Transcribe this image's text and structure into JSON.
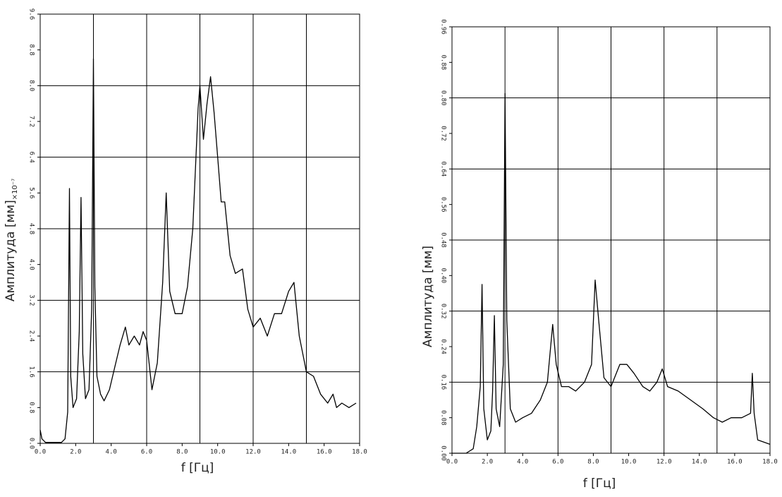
{
  "chart_data": [
    {
      "type": "line",
      "xlabel": "f [Гц]",
      "ylabel": "Амплитуда [мм]",
      "ylabel_suffix": "×10⁻⁷",
      "color": "#000000",
      "xlim": [
        0,
        18
      ],
      "ylim": [
        0,
        9.6
      ],
      "xticks": [
        {
          "value": 0,
          "label": "0.0"
        },
        {
          "value": 2,
          "label": "2.0"
        },
        {
          "value": 4,
          "label": "4.0"
        },
        {
          "value": 6,
          "label": "6.0"
        },
        {
          "value": 8,
          "label": "8.0"
        },
        {
          "value": 10,
          "label": "10.0"
        },
        {
          "value": 12,
          "label": "12.0"
        },
        {
          "value": 14,
          "label": "14.0"
        },
        {
          "value": 16,
          "label": "16.0"
        },
        {
          "value": 18,
          "label": "18.0"
        }
      ],
      "yticks": [
        {
          "value": 0,
          "label": "0.0"
        },
        0.8,
        1.6,
        2.4,
        3.2,
        {
          "value": 4,
          "label": "4.0"
        },
        4.8,
        5.6,
        6.4,
        7.2,
        {
          "value": 8,
          "label": "8.0"
        },
        8.8,
        9.6
      ],
      "x_gridlines": [
        3,
        6,
        9,
        12,
        15
      ],
      "y_gridlines": [
        1.6,
        3.2,
        4.8,
        6.4,
        8.0
      ],
      "x": [
        0,
        0.1,
        0.3,
        1.2,
        1.4,
        1.55,
        1.65,
        1.72,
        1.85,
        2.05,
        2.2,
        2.3,
        2.4,
        2.55,
        2.75,
        2.9,
        3.0,
        3.08,
        3.2,
        3.4,
        3.6,
        3.9,
        4.2,
        4.5,
        4.8,
        5.0,
        5.3,
        5.6,
        5.8,
        6.0,
        6.3,
        6.6,
        6.9,
        7.1,
        7.3,
        7.6,
        8.0,
        8.3,
        8.6,
        8.9,
        9.0,
        9.2,
        9.4,
        9.6,
        9.8,
        10.0,
        10.2,
        10.4,
        10.7,
        11.0,
        11.4,
        11.7,
        12.0,
        12.4,
        12.8,
        13.2,
        13.6,
        14.0,
        14.3,
        14.6,
        15.0,
        15.4,
        15.8,
        16.2,
        16.5,
        16.7,
        17.0,
        17.4,
        17.8
      ],
      "values": [
        0.3,
        0.1,
        0.02,
        0.02,
        0.1,
        0.7,
        5.7,
        1.5,
        0.8,
        1.0,
        2.5,
        5.5,
        2.0,
        1.0,
        1.2,
        3.0,
        8.6,
        3.5,
        1.5,
        1.1,
        0.95,
        1.2,
        1.7,
        2.2,
        2.6,
        2.2,
        2.4,
        2.2,
        2.5,
        2.3,
        1.2,
        1.8,
        3.6,
        5.6,
        3.4,
        2.9,
        2.9,
        3.5,
        4.8,
        7.5,
        8.0,
        6.8,
        7.6,
        8.2,
        7.4,
        6.4,
        5.4,
        5.4,
        4.2,
        3.8,
        3.9,
        3.0,
        2.6,
        2.8,
        2.4,
        2.9,
        2.9,
        3.4,
        3.6,
        2.4,
        1.6,
        1.5,
        1.1,
        0.9,
        1.1,
        0.8,
        0.9,
        0.8,
        0.9
      ]
    },
    {
      "type": "line",
      "xlabel": "f [Гц]",
      "ylabel": "Амплитуда [мм]",
      "color": "#000000",
      "xlim": [
        0,
        18
      ],
      "ylim": [
        0,
        0.96
      ],
      "xticks": [
        {
          "value": 0,
          "label": "0.0"
        },
        {
          "value": 2,
          "label": "2.0"
        },
        {
          "value": 4,
          "label": "4.0"
        },
        {
          "value": 6,
          "label": "6.0"
        },
        {
          "value": 8,
          "label": "8.0"
        },
        {
          "value": 10,
          "label": "10.0"
        },
        {
          "value": 12,
          "label": "12.0"
        },
        {
          "value": 14,
          "label": "14.0"
        },
        {
          "value": 16,
          "label": "16.0"
        },
        {
          "value": 18,
          "label": "18.0"
        }
      ],
      "yticks": [
        {
          "value": 0,
          "label": "0.00"
        },
        0.08,
        0.16,
        0.24,
        0.32,
        {
          "value": 0.4,
          "label": "0.40"
        },
        0.48,
        0.56,
        0.64,
        0.72,
        {
          "value": 0.8,
          "label": "0.80"
        },
        0.88,
        0.96
      ],
      "x_gridlines": [
        3,
        6,
        9,
        12,
        15
      ],
      "y_gridlines": [
        0.16,
        0.32,
        0.48,
        0.64,
        0.8
      ],
      "x": [
        0.0,
        0.8,
        1.2,
        1.4,
        1.6,
        1.7,
        1.8,
        2.0,
        2.2,
        2.3,
        2.4,
        2.5,
        2.7,
        2.9,
        3.0,
        3.1,
        3.3,
        3.6,
        4.0,
        4.5,
        5.0,
        5.4,
        5.7,
        5.9,
        6.2,
        6.6,
        7.0,
        7.5,
        7.9,
        8.1,
        8.3,
        8.6,
        9.0,
        9.5,
        9.9,
        10.3,
        10.8,
        11.2,
        11.6,
        11.9,
        12.2,
        12.8,
        13.5,
        14.2,
        14.8,
        15.3,
        15.8,
        16.4,
        16.9,
        17.0,
        17.1,
        17.3,
        18.0
      ],
      "values": [
        0.0,
        0.0,
        0.01,
        0.06,
        0.15,
        0.38,
        0.1,
        0.03,
        0.05,
        0.14,
        0.31,
        0.1,
        0.06,
        0.2,
        0.81,
        0.3,
        0.1,
        0.07,
        0.08,
        0.09,
        0.12,
        0.16,
        0.29,
        0.2,
        0.15,
        0.15,
        0.14,
        0.16,
        0.2,
        0.39,
        0.3,
        0.17,
        0.15,
        0.2,
        0.2,
        0.18,
        0.15,
        0.14,
        0.16,
        0.19,
        0.15,
        0.14,
        0.12,
        0.1,
        0.08,
        0.07,
        0.08,
        0.08,
        0.09,
        0.18,
        0.09,
        0.03,
        0.02
      ]
    }
  ]
}
